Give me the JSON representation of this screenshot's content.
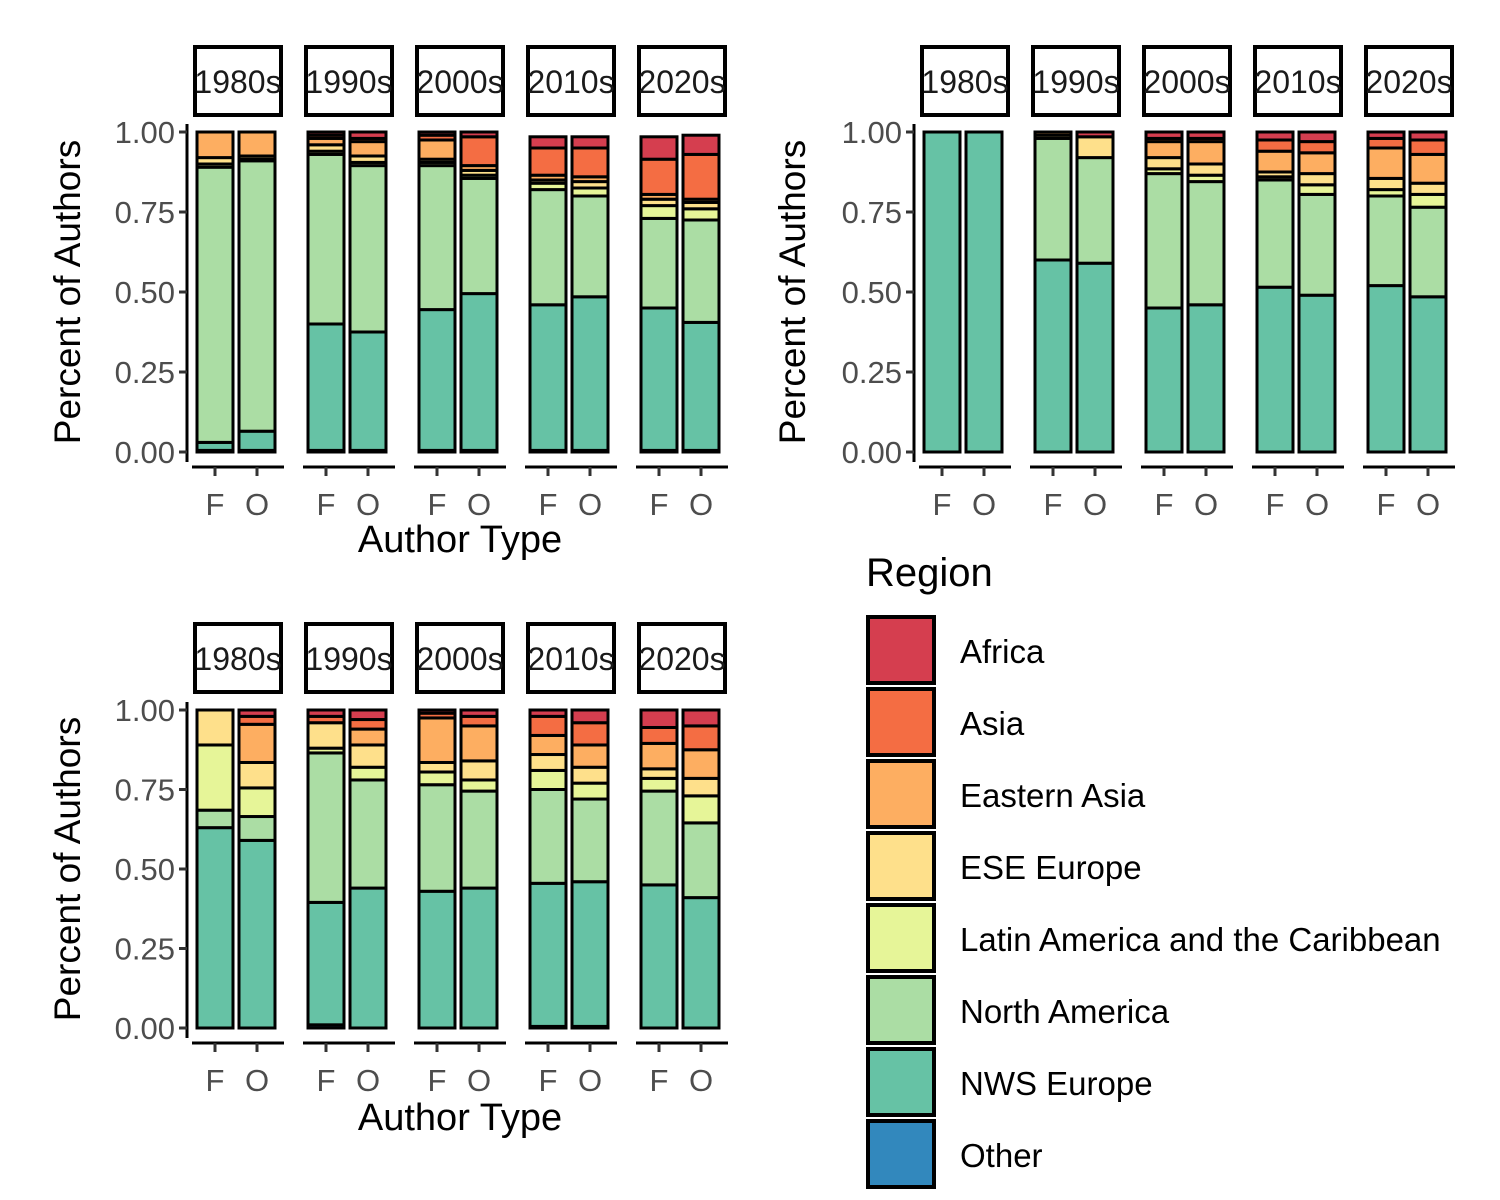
{
  "figure": {
    "legend": {
      "title": "Region",
      "entries": [
        {
          "name": "Africa",
          "color": "#D53E4F"
        },
        {
          "name": "Asia",
          "color": "#F46D43"
        },
        {
          "name": "Eastern Asia",
          "color": "#FDAE61"
        },
        {
          "name": "ESE Europe",
          "color": "#FEE08B"
        },
        {
          "name": "Latin America and the Caribbean",
          "color": "#E6F598"
        },
        {
          "name": "North America",
          "color": "#ABDDA4"
        },
        {
          "name": "NWS Europe",
          "color": "#66C2A5"
        },
        {
          "name": "Other",
          "color": "#3288BD"
        }
      ]
    }
  },
  "chart_data": [
    {
      "type": "bar",
      "stacked": true,
      "facets": [
        "1980s",
        "1990s",
        "2000s",
        "2010s",
        "2020s"
      ],
      "categories": [
        "F",
        "O"
      ],
      "xlabel": "Author Type",
      "ylabel": "Percent of Authors",
      "ylim": [
        0,
        1
      ],
      "yticks": [
        "0.00",
        "0.25",
        "0.50",
        "0.75",
        "1.00"
      ],
      "bars": [
        {
          "facet": "1980s",
          "category": "F",
          "stack": [
            0.005,
            0.025,
            0.86,
            0.01,
            0.02,
            0.08,
            0.0,
            0.0
          ]
        },
        {
          "facet": "1980s",
          "category": "O",
          "stack": [
            0.005,
            0.06,
            0.845,
            0.005,
            0.01,
            0.075,
            0.0,
            0.0
          ]
        },
        {
          "facet": "1990s",
          "category": "F",
          "stack": [
            0.005,
            0.395,
            0.53,
            0.01,
            0.02,
            0.02,
            0.01,
            0.01
          ]
        },
        {
          "facet": "1990s",
          "category": "O",
          "stack": [
            0.005,
            0.37,
            0.52,
            0.01,
            0.02,
            0.045,
            0.01,
            0.02
          ]
        },
        {
          "facet": "2000s",
          "category": "F",
          "stack": [
            0.005,
            0.44,
            0.45,
            0.01,
            0.01,
            0.06,
            0.015,
            0.01
          ]
        },
        {
          "facet": "2000s",
          "category": "O",
          "stack": [
            0.005,
            0.49,
            0.36,
            0.01,
            0.015,
            0.015,
            0.09,
            0.015
          ]
        },
        {
          "facet": "2010s",
          "category": "F",
          "stack": [
            0.005,
            0.455,
            0.36,
            0.02,
            0.01,
            0.015,
            0.085,
            0.035
          ]
        },
        {
          "facet": "2010s",
          "category": "O",
          "stack": [
            0.005,
            0.48,
            0.315,
            0.025,
            0.02,
            0.015,
            0.09,
            0.035
          ]
        },
        {
          "facet": "2020s",
          "category": "F",
          "stack": [
            0.005,
            0.445,
            0.28,
            0.04,
            0.02,
            0.015,
            0.11,
            0.07
          ]
        },
        {
          "facet": "2020s",
          "category": "O",
          "stack": [
            0.005,
            0.4,
            0.32,
            0.035,
            0.02,
            0.01,
            0.14,
            0.06
          ]
        }
      ]
    },
    {
      "type": "bar",
      "stacked": true,
      "facets": [
        "1980s",
        "1990s",
        "2000s",
        "2010s",
        "2020s"
      ],
      "categories": [
        "F",
        "O"
      ],
      "ylabel": "Percent of Authors",
      "ylim": [
        0,
        1
      ],
      "yticks": [
        "0.00",
        "0.25",
        "0.50",
        "0.75",
        "1.00"
      ],
      "bars": [
        {
          "facet": "1980s",
          "category": "F",
          "stack": [
            0.0,
            1.0,
            0.0,
            0.0,
            0.0,
            0.0,
            0.0,
            0.0
          ]
        },
        {
          "facet": "1980s",
          "category": "O",
          "stack": [
            0.0,
            1.0,
            0.0,
            0.0,
            0.0,
            0.0,
            0.0,
            0.0
          ]
        },
        {
          "facet": "1990s",
          "category": "F",
          "stack": [
            0.0,
            0.6,
            0.38,
            0.0,
            0.01,
            0.01,
            0.0,
            0.0
          ]
        },
        {
          "facet": "1990s",
          "category": "O",
          "stack": [
            0.0,
            0.59,
            0.33,
            0.0,
            0.065,
            0.0,
            0.0,
            0.015
          ]
        },
        {
          "facet": "2000s",
          "category": "F",
          "stack": [
            0.0,
            0.45,
            0.42,
            0.015,
            0.035,
            0.05,
            0.01,
            0.02
          ]
        },
        {
          "facet": "2000s",
          "category": "O",
          "stack": [
            0.0,
            0.46,
            0.385,
            0.02,
            0.035,
            0.07,
            0.01,
            0.02
          ]
        },
        {
          "facet": "2010s",
          "category": "F",
          "stack": [
            0.0,
            0.515,
            0.335,
            0.01,
            0.015,
            0.065,
            0.035,
            0.025
          ]
        },
        {
          "facet": "2010s",
          "category": "O",
          "stack": [
            0.0,
            0.49,
            0.315,
            0.03,
            0.035,
            0.065,
            0.035,
            0.03
          ]
        },
        {
          "facet": "2020s",
          "category": "F",
          "stack": [
            0.0,
            0.52,
            0.28,
            0.02,
            0.035,
            0.095,
            0.03,
            0.02
          ]
        },
        {
          "facet": "2020s",
          "category": "O",
          "stack": [
            0.0,
            0.485,
            0.28,
            0.04,
            0.035,
            0.09,
            0.045,
            0.025
          ]
        }
      ]
    },
    {
      "type": "bar",
      "stacked": true,
      "facets": [
        "1980s",
        "1990s",
        "2000s",
        "2010s",
        "2020s"
      ],
      "categories": [
        "F",
        "O"
      ],
      "xlabel": "Author Type",
      "ylabel": "Percent of Authors",
      "ylim": [
        0,
        1
      ],
      "yticks": [
        "0.00",
        "0.25",
        "0.50",
        "0.75",
        "1.00"
      ],
      "bars": [
        {
          "facet": "1980s",
          "category": "F",
          "stack": [
            0.0,
            0.63,
            0.055,
            0.205,
            0.11,
            0.0,
            0.0,
            0.0
          ]
        },
        {
          "facet": "1980s",
          "category": "O",
          "stack": [
            0.0,
            0.59,
            0.075,
            0.09,
            0.08,
            0.12,
            0.025,
            0.02
          ]
        },
        {
          "facet": "1990s",
          "category": "F",
          "stack": [
            0.01,
            0.385,
            0.47,
            0.015,
            0.08,
            0.0,
            0.02,
            0.02
          ]
        },
        {
          "facet": "1990s",
          "category": "O",
          "stack": [
            0.0,
            0.44,
            0.34,
            0.04,
            0.07,
            0.05,
            0.03,
            0.03
          ]
        },
        {
          "facet": "2000s",
          "category": "F",
          "stack": [
            0.0,
            0.43,
            0.335,
            0.04,
            0.03,
            0.14,
            0.015,
            0.01
          ]
        },
        {
          "facet": "2000s",
          "category": "O",
          "stack": [
            0.0,
            0.44,
            0.305,
            0.035,
            0.06,
            0.11,
            0.03,
            0.02
          ]
        },
        {
          "facet": "2010s",
          "category": "F",
          "stack": [
            0.005,
            0.45,
            0.295,
            0.06,
            0.05,
            0.06,
            0.06,
            0.02
          ]
        },
        {
          "facet": "2010s",
          "category": "O",
          "stack": [
            0.005,
            0.455,
            0.26,
            0.05,
            0.05,
            0.07,
            0.07,
            0.04
          ]
        },
        {
          "facet": "2020s",
          "category": "F",
          "stack": [
            0.0,
            0.45,
            0.295,
            0.04,
            0.03,
            0.08,
            0.05,
            0.055
          ]
        },
        {
          "facet": "2020s",
          "category": "O",
          "stack": [
            0.0,
            0.41,
            0.235,
            0.085,
            0.055,
            0.09,
            0.075,
            0.05
          ]
        }
      ]
    }
  ]
}
